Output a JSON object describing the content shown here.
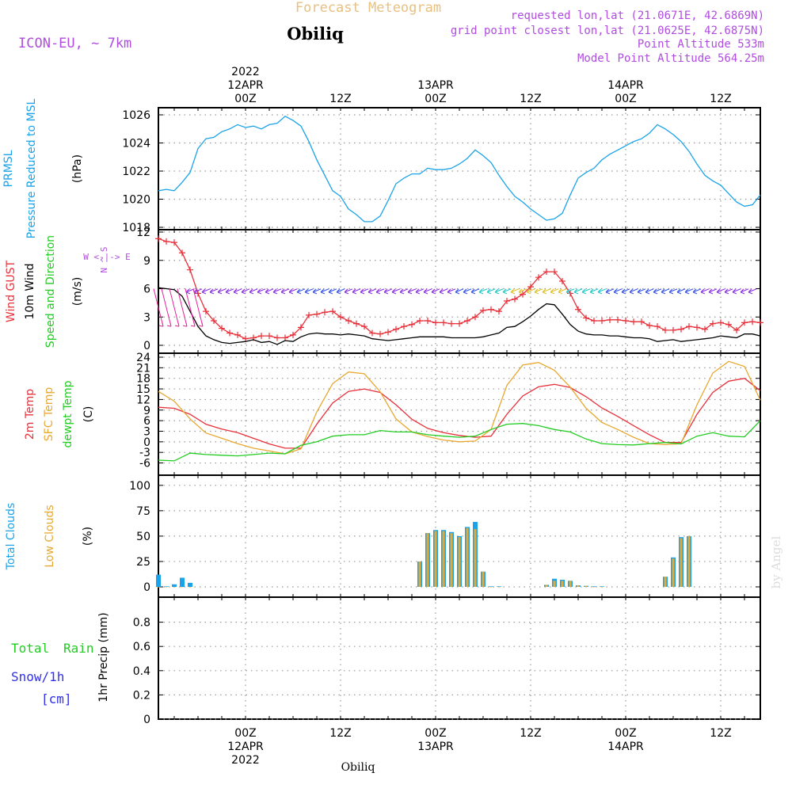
{
  "header": {
    "title": "Forecast Meteogram",
    "location": "Obiliq",
    "model": "ICON-EU, ~ 7km",
    "requested": "requested lon,lat (21.0671E, 42.6869N)",
    "gridpoint": "grid point closest lon,lat (21.0625E, 42.6875N)",
    "point_alt": "Point Altitude 533m",
    "model_alt": "Model Point Altitude 564.25m",
    "footer_location": "Obiliq",
    "credit": "by Angel"
  },
  "time_axis": {
    "top_labels": [
      "2022\n12APR\n00Z",
      "12Z",
      "13APR\n00Z",
      "12Z",
      "14APR\n00Z",
      "12Z"
    ],
    "bottom_labels": [
      "00Z\n12APR\n2022",
      "12Z",
      "00Z\n13APR",
      "12Z",
      "00Z\n14APR",
      "12Z"
    ],
    "hours": [
      0,
      12,
      24,
      36,
      48,
      60
    ],
    "start_hour": -11,
    "end_hour": 65
  },
  "chart_data": [
    {
      "type": "line",
      "name": "pressure",
      "labels": [
        "PRMSL",
        "Pressure Reduced to MSL",
        "(hPa)"
      ],
      "ylim": [
        1018,
        1026
      ],
      "yticks": [
        1018,
        1020,
        1022,
        1024,
        1026
      ],
      "series": [
        {
          "name": "PRMSL",
          "color": "#1aa3e8",
          "x": [
            -11,
            -10,
            -9,
            -8,
            -7,
            -6,
            -5,
            -4,
            -3,
            -2,
            -1,
            0,
            1,
            2,
            3,
            4,
            5,
            6,
            7,
            8,
            9,
            10,
            11,
            12,
            13,
            14,
            15,
            16,
            17,
            18,
            19,
            20,
            21,
            22,
            23,
            24,
            25,
            26,
            27,
            28,
            29,
            30,
            31,
            32,
            33,
            34,
            35,
            36,
            37,
            38,
            39,
            40,
            41,
            42,
            43,
            44,
            45,
            46,
            47,
            48,
            49,
            50,
            51,
            52,
            53,
            54,
            55,
            56,
            57,
            58,
            59,
            60,
            61,
            62,
            63,
            64,
            65
          ],
          "y": [
            1020.6,
            1020.7,
            1020.6,
            1021.2,
            1021.9,
            1023.6,
            1024.3,
            1024.4,
            1024.8,
            1025.0,
            1025.3,
            1025.1,
            1025.2,
            1025.0,
            1025.3,
            1025.4,
            1025.9,
            1025.6,
            1025.2,
            1024.1,
            1022.8,
            1021.7,
            1020.6,
            1020.2,
            1019.3,
            1018.9,
            1018.4,
            1018.4,
            1018.8,
            1019.9,
            1021.1,
            1021.5,
            1021.8,
            1021.8,
            1022.2,
            1022.1,
            1022.1,
            1022.2,
            1022.5,
            1022.9,
            1023.5,
            1023.1,
            1022.6,
            1021.7,
            1020.9,
            1020.2,
            1019.8,
            1019.3,
            1018.9,
            1018.5,
            1018.6,
            1019.0,
            1020.3,
            1021.5,
            1021.9,
            1022.2,
            1022.8,
            1023.2,
            1023.5,
            1023.8,
            1024.1,
            1024.3,
            1024.7,
            1025.3,
            1025.0,
            1024.6,
            1024.1,
            1023.4,
            1022.5,
            1021.7,
            1021.3,
            1021.0,
            1020.4,
            1019.8,
            1019.5,
            1019.6,
            1020.3
          ]
        }
      ]
    },
    {
      "type": "line",
      "name": "wind",
      "labels": [
        "Wind GUST",
        "10m Wind",
        "Speed and Direction",
        "(m/s)"
      ],
      "direction_legend": "W <-|-> E",
      "direction_legend_v": "N ^ S",
      "ylim": [
        0,
        12
      ],
      "yticks": [
        0,
        3,
        6,
        9,
        12
      ],
      "series": [
        {
          "name": "Wind GUST",
          "color": "#e8303a",
          "x": [
            -11,
            -10,
            -9,
            -8,
            -7,
            -6,
            -5,
            -4,
            -3,
            -2,
            -1,
            0,
            1,
            2,
            3,
            4,
            5,
            6,
            7,
            8,
            9,
            10,
            11,
            12,
            13,
            14,
            15,
            16,
            17,
            18,
            19,
            20,
            21,
            22,
            23,
            24,
            25,
            26,
            27,
            28,
            29,
            30,
            31,
            32,
            33,
            34,
            35,
            36,
            37,
            38,
            39,
            40,
            41,
            42,
            43,
            44,
            45,
            46,
            47,
            48,
            49,
            50,
            51,
            52,
            53,
            54,
            55,
            56,
            57,
            58,
            59,
            60,
            61,
            62,
            63,
            64,
            65
          ],
          "y": [
            11.3,
            11.0,
            10.9,
            9.8,
            8.0,
            5.5,
            3.6,
            2.6,
            1.8,
            1.3,
            1.1,
            0.7,
            0.8,
            1.0,
            1.0,
            0.8,
            0.8,
            1.1,
            1.9,
            3.2,
            3.3,
            3.5,
            3.6,
            3.0,
            2.6,
            2.3,
            2.0,
            1.3,
            1.2,
            1.4,
            1.7,
            2.0,
            2.2,
            2.6,
            2.6,
            2.4,
            2.4,
            2.3,
            2.3,
            2.6,
            3.0,
            3.7,
            3.8,
            3.6,
            4.7,
            4.9,
            5.4,
            6.2,
            7.2,
            7.8,
            7.8,
            6.8,
            5.5,
            3.8,
            2.9,
            2.6,
            2.6,
            2.7,
            2.7,
            2.6,
            2.5,
            2.5,
            2.1,
            2.0,
            1.6,
            1.6,
            1.7,
            2.0,
            1.9,
            1.7,
            2.3,
            2.4,
            2.2,
            1.6,
            2.4,
            2.5,
            2.4
          ]
        },
        {
          "name": "10m Wind",
          "color": "#000000",
          "x": [
            -11,
            -10,
            -9,
            -8,
            -7,
            -6,
            -5,
            -4,
            -3,
            -2,
            -1,
            0,
            1,
            2,
            3,
            4,
            5,
            6,
            7,
            8,
            9,
            10,
            11,
            12,
            13,
            14,
            15,
            16,
            17,
            18,
            19,
            20,
            21,
            22,
            23,
            24,
            25,
            26,
            27,
            28,
            29,
            30,
            31,
            32,
            33,
            34,
            35,
            36,
            37,
            38,
            39,
            40,
            41,
            42,
            43,
            44,
            45,
            46,
            47,
            48,
            49,
            50,
            51,
            52,
            53,
            54,
            55,
            56,
            57,
            58,
            59,
            60,
            61,
            62,
            63,
            64,
            65
          ],
          "y": [
            6.1,
            6.0,
            5.9,
            5.2,
            3.6,
            2.0,
            1.0,
            0.6,
            0.3,
            0.2,
            0.3,
            0.4,
            0.6,
            0.3,
            0.4,
            0.1,
            0.5,
            0.4,
            0.9,
            1.2,
            1.3,
            1.2,
            1.2,
            1.1,
            1.2,
            1.1,
            1.0,
            0.7,
            0.6,
            0.5,
            0.6,
            0.7,
            0.8,
            0.9,
            0.9,
            0.9,
            0.9,
            0.8,
            0.8,
            0.8,
            0.8,
            0.9,
            1.1,
            1.3,
            1.9,
            2.0,
            2.5,
            3.1,
            3.8,
            4.4,
            4.3,
            3.3,
            2.2,
            1.5,
            1.2,
            1.1,
            1.1,
            1.0,
            1.0,
            0.9,
            0.8,
            0.8,
            0.7,
            0.4,
            0.5,
            0.6,
            0.4,
            0.5,
            0.6,
            0.7,
            0.8,
            1.0,
            0.9,
            0.8,
            1.2,
            1.2,
            1.0
          ]
        }
      ]
    },
    {
      "type": "line",
      "name": "temperature",
      "labels": [
        "2m Temp",
        "SFC Temp",
        "dewpt Temp",
        "(C)"
      ],
      "ylim": [
        -7,
        24
      ],
      "yticks": [
        -6,
        -3,
        0,
        3,
        6,
        9,
        12,
        15,
        18,
        21,
        24
      ],
      "series": [
        {
          "name": "2m Temp",
          "color": "#e8303a",
          "x": [
            -11,
            -9,
            -7,
            -5,
            -3,
            -1,
            1,
            3,
            5,
            7,
            9,
            11,
            13,
            15,
            17,
            19,
            21,
            23,
            25,
            27,
            29,
            31,
            33,
            35,
            37,
            39,
            41,
            43,
            45,
            47,
            49,
            51,
            53,
            55,
            57,
            59,
            61,
            63,
            65
          ],
          "y": [
            9.8,
            9.5,
            7.8,
            5.0,
            3.6,
            2.6,
            1.0,
            -0.6,
            -1.8,
            -1.8,
            5.0,
            11.0,
            14.3,
            15.0,
            14.0,
            10.5,
            6.4,
            3.8,
            2.6,
            1.8,
            1.3,
            1.6,
            7.8,
            13.0,
            15.6,
            16.3,
            15.4,
            12.8,
            9.6,
            7.2,
            4.6,
            2.0,
            -0.2,
            -0.2,
            7.8,
            14.0,
            17.2,
            18.0,
            14.5
          ]
        },
        {
          "name": "SFC Temp",
          "color": "#e8a830",
          "x": [
            -11,
            -9,
            -7,
            -5,
            -3,
            -1,
            1,
            3,
            5,
            7,
            9,
            11,
            13,
            15,
            17,
            19,
            21,
            23,
            25,
            27,
            29,
            31,
            33,
            35,
            37,
            39,
            41,
            43,
            45,
            47,
            49,
            51,
            53,
            55,
            57,
            59,
            61,
            63,
            65
          ],
          "y": [
            14.3,
            11.5,
            6.5,
            2.5,
            1.0,
            -0.5,
            -1.8,
            -2.6,
            -3.4,
            -2.0,
            8.5,
            16.5,
            19.8,
            19.3,
            14.2,
            6.5,
            2.8,
            1.5,
            0.5,
            0.0,
            0.2,
            3.5,
            16.0,
            21.8,
            22.5,
            20.3,
            15.5,
            9.5,
            5.5,
            3.5,
            1.3,
            -0.5,
            -0.8,
            -0.5,
            10.5,
            19.5,
            22.8,
            21.4,
            11.8
          ]
        },
        {
          "name": "dewpt Temp",
          "color": "#22cc22",
          "x": [
            -11,
            -9,
            -7,
            -5,
            -3,
            -1,
            1,
            3,
            5,
            7,
            9,
            11,
            13,
            15,
            17,
            19,
            21,
            23,
            25,
            27,
            29,
            31,
            33,
            35,
            37,
            39,
            41,
            43,
            45,
            47,
            49,
            51,
            53,
            55,
            57,
            59,
            61,
            63,
            65
          ],
          "y": [
            -5.2,
            -5.4,
            -3.2,
            -3.6,
            -3.8,
            -4.0,
            -3.6,
            -3.2,
            -3.4,
            -1.0,
            0.0,
            1.6,
            2.0,
            2.0,
            3.2,
            2.8,
            2.8,
            2.0,
            1.6,
            1.3,
            1.6,
            3.5,
            5.0,
            5.2,
            4.6,
            3.5,
            2.8,
            0.8,
            -0.5,
            -0.8,
            -0.9,
            -0.5,
            -0.2,
            -0.6,
            1.6,
            2.6,
            1.6,
            1.4,
            6.0
          ]
        }
      ]
    },
    {
      "type": "bar",
      "name": "clouds",
      "labels": [
        "Total Clouds",
        "Low Clouds",
        "(%)"
      ],
      "ylim": [
        0,
        110
      ],
      "yticks": [
        0,
        25,
        50,
        75,
        100
      ],
      "series": [
        {
          "name": "Total Clouds",
          "color": "#1aa3e8",
          "x": [
            -11,
            -10,
            -9,
            -8,
            -7,
            22,
            23,
            24,
            25,
            26,
            27,
            28,
            29,
            30,
            31,
            32,
            38,
            39,
            40,
            41,
            42,
            43,
            44,
            45,
            53,
            54,
            55,
            56
          ],
          "values": [
            12,
            0.5,
            2.5,
            9,
            4,
            25,
            53,
            56,
            56,
            54,
            50,
            59,
            64,
            15,
            0.5,
            0.5,
            2,
            8,
            7,
            6,
            1.5,
            1,
            0.5,
            0.5,
            10,
            29,
            49,
            50
          ]
        },
        {
          "name": "Low Clouds",
          "color": "#e8a830",
          "x": [
            -11,
            -10,
            -9,
            -8,
            -7,
            22,
            23,
            24,
            25,
            26,
            27,
            28,
            29,
            30,
            31,
            32,
            38,
            39,
            40,
            41,
            42,
            43,
            44,
            45,
            53,
            54,
            55,
            56
          ],
          "values": [
            0,
            0,
            0,
            0,
            0,
            25,
            53,
            55,
            55,
            53,
            49,
            58,
            57,
            15,
            0,
            0,
            2,
            6,
            6,
            6,
            1.5,
            1,
            0,
            0,
            10,
            28,
            48,
            50
          ]
        }
      ]
    },
    {
      "type": "bar",
      "name": "precip",
      "labels": [
        "Total",
        "Rain",
        "Snow/1h",
        "[cm]",
        "1hr Precip (mm)"
      ],
      "ylim": [
        0,
        1.0
      ],
      "yticks": [
        0,
        0.2,
        0.4,
        0.6,
        0.8
      ],
      "series": [
        {
          "name": "Total",
          "color": "#22cc22",
          "x": [],
          "values": []
        }
      ]
    }
  ],
  "colors": {
    "purple": "#b04ce0",
    "orange": "#e8c080",
    "blue": "#1aa3e8",
    "red": "#e8303a",
    "green": "#22cc22",
    "snow": "#3030e8"
  }
}
